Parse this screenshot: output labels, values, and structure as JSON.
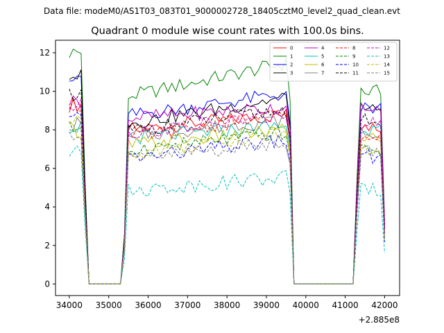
{
  "chart_data": {
    "type": "line",
    "suptitle": "Data file: modeM0/AS1T03_083T01_9000002728_18405cztM0_level2_quad_clean.evt",
    "title": "Quadrant 0 module wise count rates with 100.0s bins.",
    "xlabel": "",
    "ylabel": "",
    "x_offset_label": "+2.885e8",
    "xlim": [
      33650,
      42380
    ],
    "ylim": [
      -0.6,
      12.65
    ],
    "x_ticks": [
      34000,
      35000,
      36000,
      37000,
      38000,
      39000,
      40000,
      41000,
      42000
    ],
    "x_tick_labels": [
      "34000",
      "35000",
      "36000",
      "37000",
      "38000",
      "39000",
      "40000",
      "41000",
      "42000"
    ],
    "y_ticks": [
      0,
      2,
      4,
      6,
      8,
      10,
      12
    ],
    "y_tick_labels": [
      "0",
      "2",
      "4",
      "6",
      "8",
      "10",
      "12"
    ],
    "gaps": [
      [
        34450,
        35350
      ],
      [
        39650,
        41250
      ]
    ],
    "legend_position": "top-right",
    "legend_columns": 4,
    "series": [
      {
        "name": "0",
        "color": "#ff0000",
        "dash": "solid",
        "start": 9.3,
        "mid": 8.4,
        "end": 8.2,
        "trend": 0.8
      },
      {
        "name": "1",
        "color": "#008000",
        "dash": "solid",
        "start": 12.0,
        "mid": 10.6,
        "end": 10.0,
        "trend": 1.8
      },
      {
        "name": "2",
        "color": "#0000ff",
        "dash": "solid",
        "start": 10.9,
        "mid": 9.3,
        "end": 9.1,
        "trend": 1.2
      },
      {
        "name": "3",
        "color": "#000000",
        "dash": "solid",
        "start": 10.8,
        "mid": 9.0,
        "end": 9.1,
        "trend": 1.4
      },
      {
        "name": "4",
        "color": "#bf00bf",
        "dash": "solid",
        "start": 9.5,
        "mid": 8.9,
        "end": 9.2,
        "trend": 0.6
      },
      {
        "name": "5",
        "color": "#00bfbf",
        "dash": "solid",
        "start": 8.2,
        "mid": 7.9,
        "end": 7.9,
        "trend": 0.7
      },
      {
        "name": "6",
        "color": "#bfbf00",
        "dash": "solid",
        "start": 8.0,
        "mid": 7.6,
        "end": 7.6,
        "trend": 0.8
      },
      {
        "name": "7",
        "color": "#808080",
        "dash": "solid",
        "start": 8.3,
        "mid": 8.1,
        "end": 7.9,
        "trend": 0.9
      },
      {
        "name": "8",
        "color": "#ff0000",
        "dash": "dashed",
        "start": 9.2,
        "mid": 8.2,
        "end": 7.8,
        "trend": 1.3
      },
      {
        "name": "9",
        "color": "#008000",
        "dash": "dashed",
        "start": 8.1,
        "mid": 7.4,
        "end": 7.0,
        "trend": 0.9
      },
      {
        "name": "10",
        "color": "#0000ff",
        "dash": "dashed",
        "start": 8.5,
        "mid": 7.0,
        "end": 6.6,
        "trend": 1.0
      },
      {
        "name": "11",
        "color": "#000000",
        "dash": "dashed",
        "start": 9.9,
        "mid": 8.5,
        "end": 8.5,
        "trend": 1.1
      },
      {
        "name": "12",
        "color": "#bf00bf",
        "dash": "dashed",
        "start": 9.2,
        "mid": 8.3,
        "end": 8.3,
        "trend": 1.0
      },
      {
        "name": "13",
        "color": "#00bfbf",
        "dash": "dashed",
        "start": 6.8,
        "mid": 5.2,
        "end": 4.9,
        "trend": 0.8
      },
      {
        "name": "14",
        "color": "#bfbf00",
        "dash": "dashed",
        "start": 8.4,
        "mid": 7.3,
        "end": 6.9,
        "trend": 1.2
      },
      {
        "name": "15",
        "color": "#808080",
        "dash": "dashed",
        "start": 7.8,
        "mid": 6.9,
        "end": 6.9,
        "trend": 1.0
      }
    ]
  }
}
